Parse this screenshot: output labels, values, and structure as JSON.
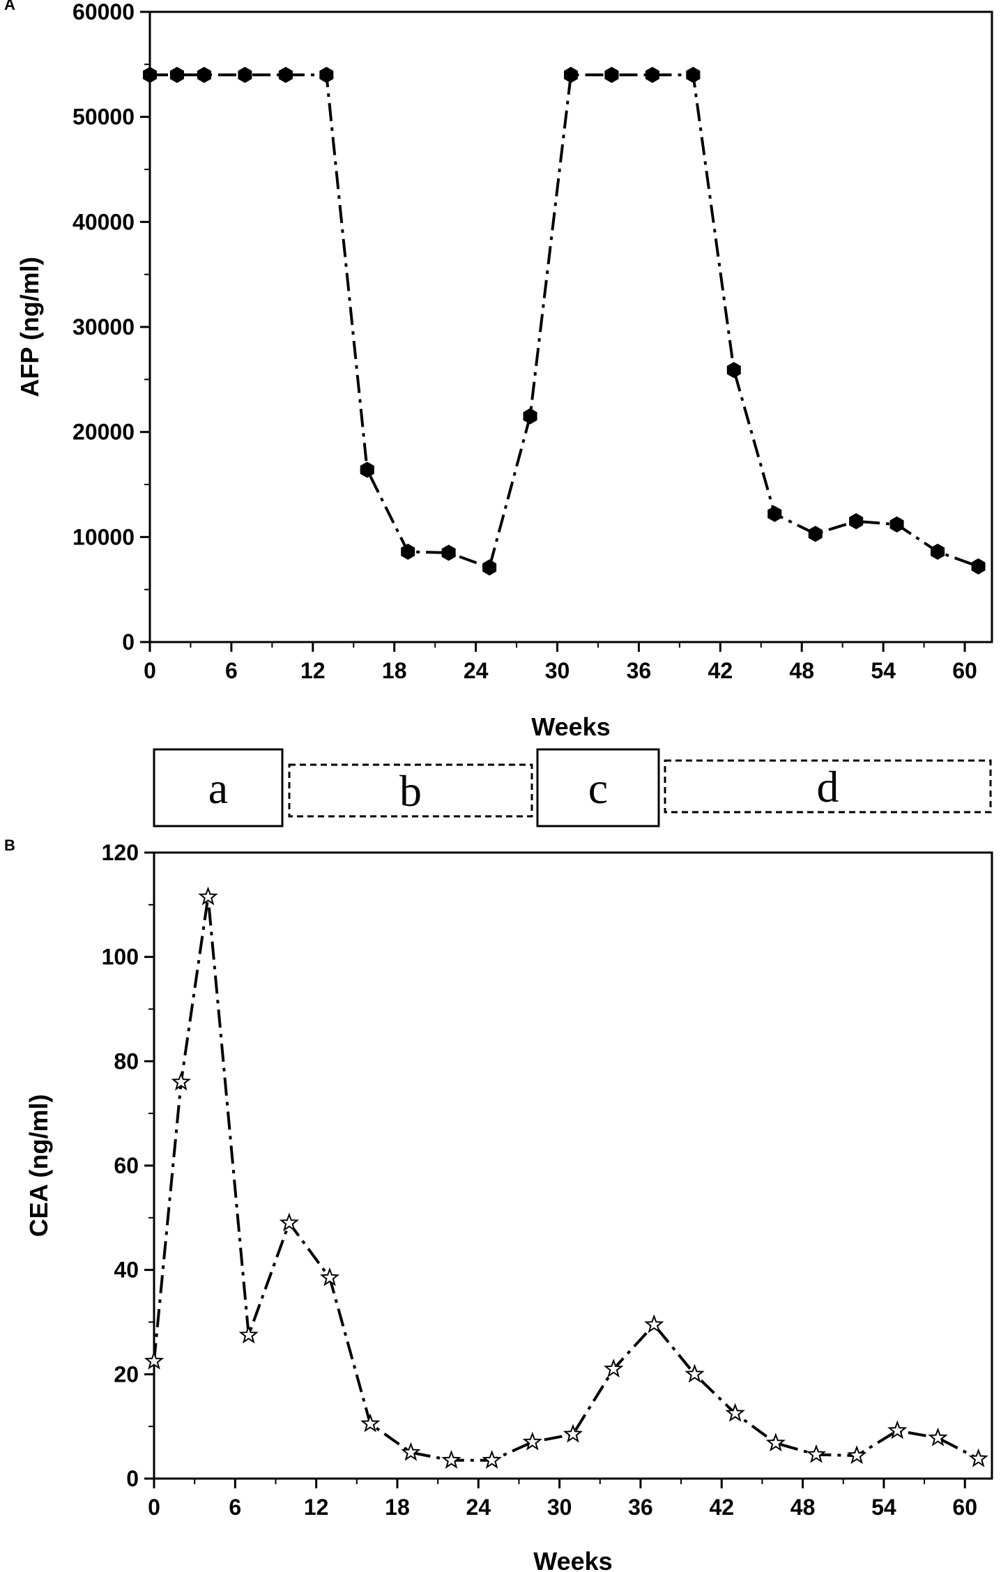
{
  "figure": {
    "panel_labels": [
      "A",
      "B"
    ],
    "phases": [
      {
        "label": "a",
        "style": "solid"
      },
      {
        "label": "b",
        "style": "dashed"
      },
      {
        "label": "c",
        "style": "solid"
      },
      {
        "label": "d",
        "style": "dashed"
      }
    ],
    "colors": {
      "line": "#000000",
      "background": "#ffffff"
    }
  },
  "chart_data": [
    {
      "panel": "A",
      "type": "line",
      "xlabel": "Weeks",
      "ylabel": "AFP (ng/ml)",
      "xlim": [
        0,
        62
      ],
      "ylim": [
        0,
        60000
      ],
      "xticks": [
        0,
        6,
        12,
        18,
        24,
        30,
        36,
        42,
        48,
        54,
        60
      ],
      "yticks": [
        0,
        10000,
        20000,
        30000,
        40000,
        50000,
        60000
      ],
      "marker": "filled-hexagon",
      "line_style": "dash-dot",
      "series": [
        {
          "x": [
            0,
            2,
            4,
            7,
            10,
            13,
            16,
            19,
            22,
            25,
            28,
            31,
            34,
            37,
            40,
            43,
            46,
            49,
            52,
            55,
            58,
            61
          ],
          "values": [
            54000,
            54000,
            54000,
            54000,
            54000,
            54000,
            16400,
            8600,
            8500,
            7100,
            21500,
            54000,
            54000,
            54000,
            54000,
            25900,
            12200,
            10300,
            11500,
            11200,
            8600,
            7200
          ]
        }
      ]
    },
    {
      "panel": "B",
      "type": "line",
      "xlabel": "Weeks",
      "ylabel": "CEA (ng/ml)",
      "xlim": [
        0,
        62
      ],
      "ylim": [
        0,
        120
      ],
      "xticks": [
        0,
        6,
        12,
        18,
        24,
        30,
        36,
        42,
        48,
        54,
        60
      ],
      "yticks": [
        0,
        20,
        40,
        60,
        80,
        100,
        120
      ],
      "marker": "open-star",
      "line_style": "dash-dot",
      "series": [
        {
          "x": [
            0,
            2,
            4,
            7,
            10,
            13,
            16,
            19,
            22,
            25,
            28,
            31,
            34,
            37,
            40,
            43,
            46,
            49,
            52,
            55,
            58,
            61
          ],
          "values": [
            22.5,
            76,
            111.5,
            27.5,
            49,
            38.5,
            10.5,
            5,
            3.5,
            3.5,
            7,
            8.5,
            21,
            29.5,
            20,
            12.5,
            6.8,
            4.6,
            4.4,
            9.2,
            7.8,
            3.8
          ]
        }
      ]
    }
  ]
}
